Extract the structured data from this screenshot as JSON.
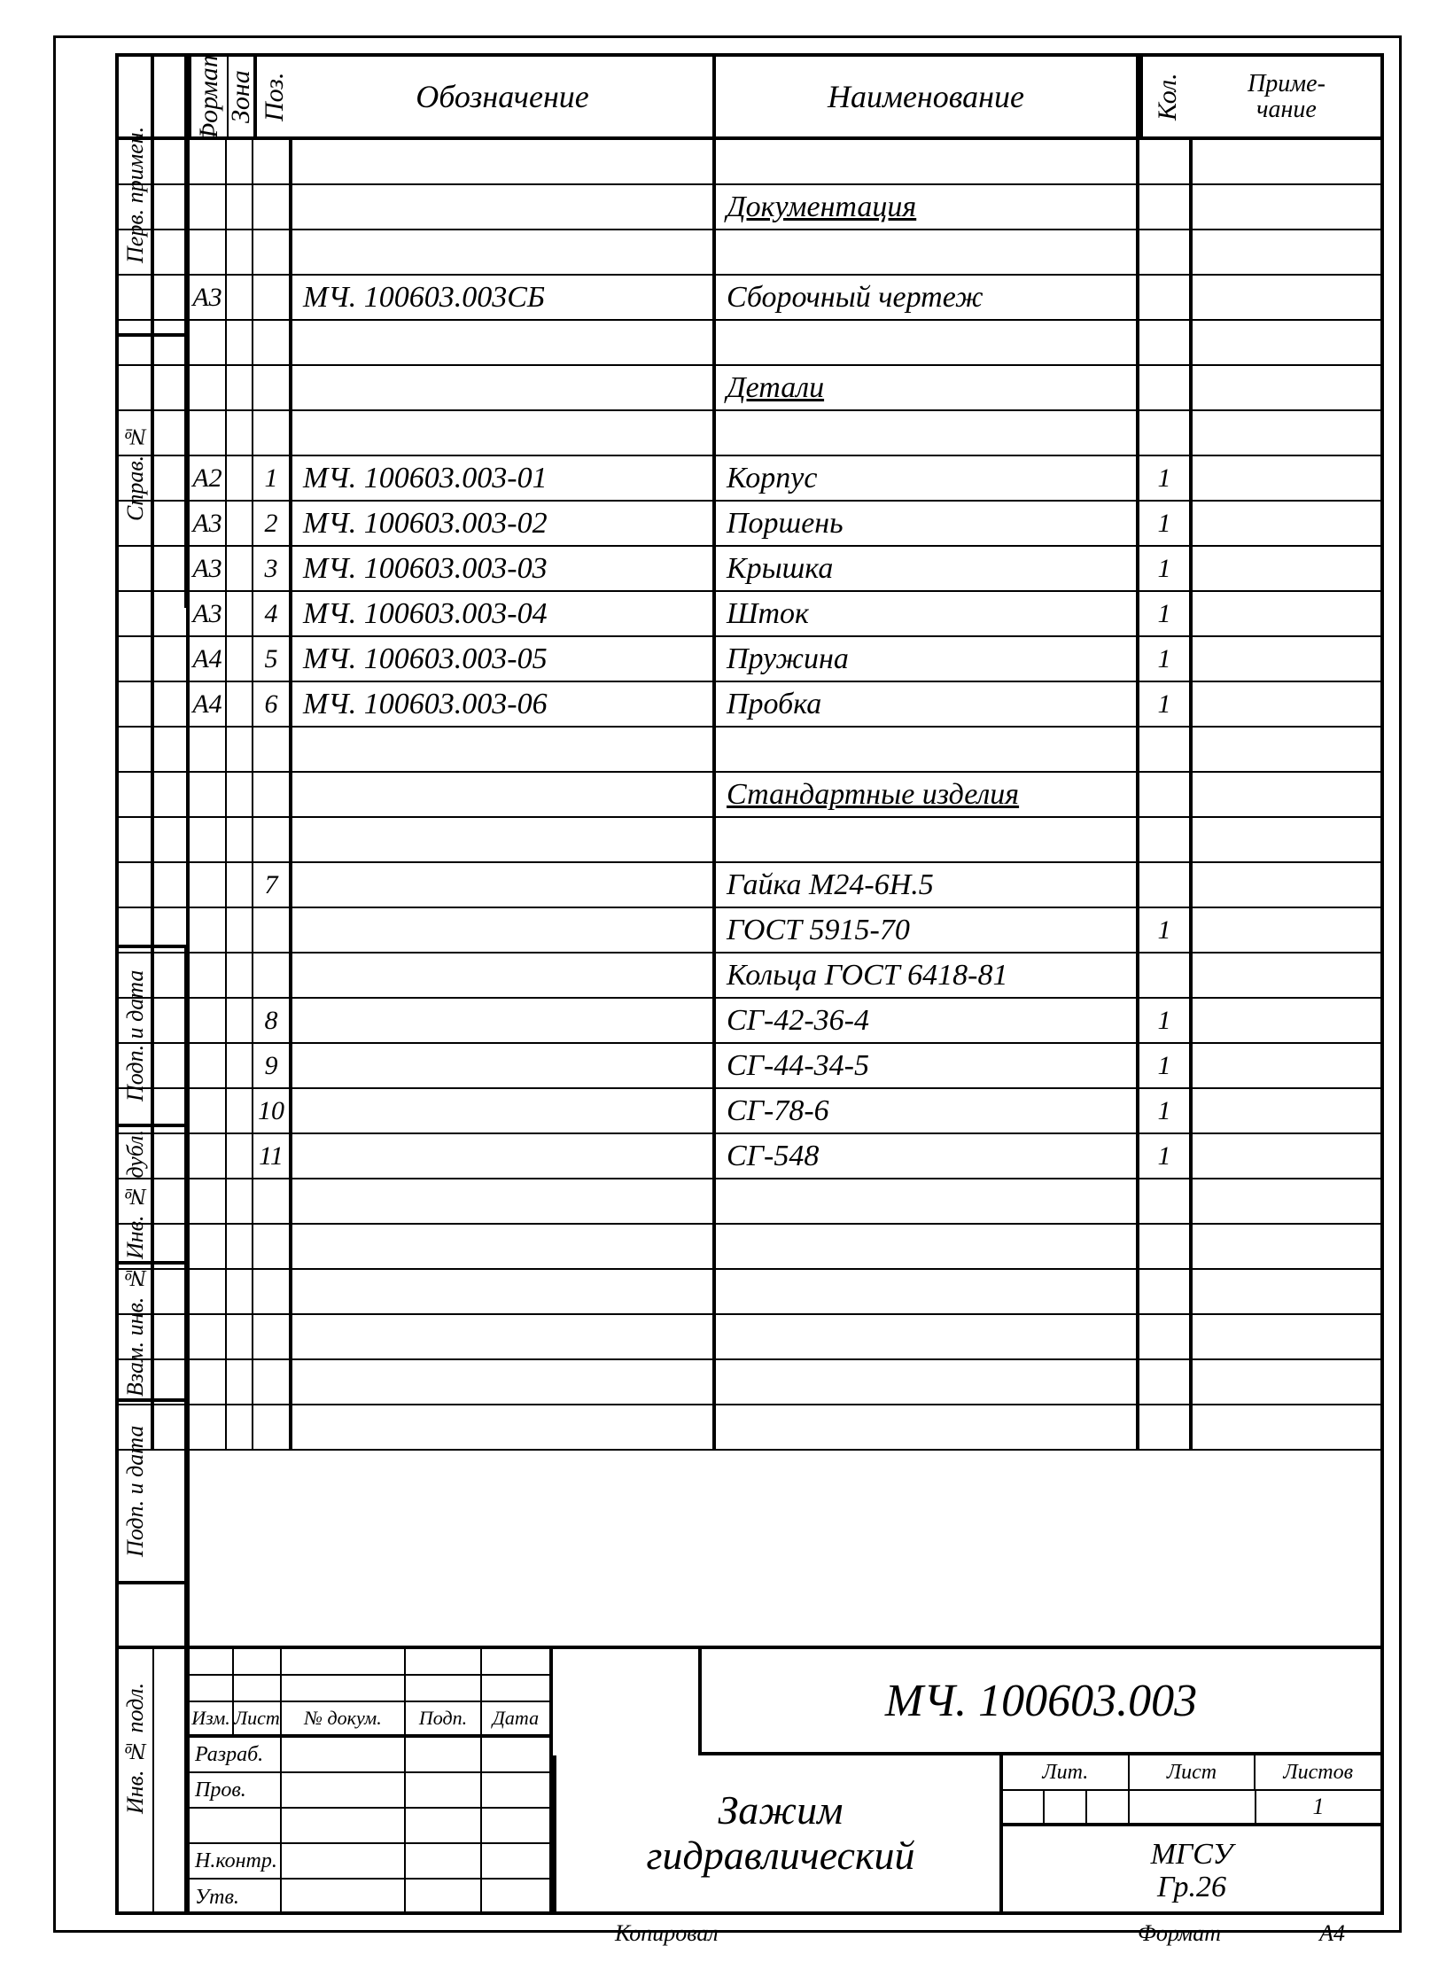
{
  "headers": {
    "format": "Формат",
    "zona": "Зона",
    "poz": "Поз.",
    "oboz": "Обозначение",
    "naim": "Наименование",
    "kol": "Кол.",
    "prim": "Приме-\nчание"
  },
  "side_labels": {
    "perv_primen": "Перв. примен.",
    "sprav_no": "Справ. №",
    "podp_data1": "Подп. и дата",
    "inv_dubl": "Инв. № дубл.",
    "vzam_inv": "Взам. инв. №",
    "podp_data2": "Подп. и дата",
    "inv_podl": "Инв. № подл."
  },
  "rows": [
    {
      "format": "",
      "zona": "",
      "poz": "",
      "oboz": "",
      "naim": "",
      "kol": "",
      "prim": ""
    },
    {
      "format": "",
      "zona": "",
      "poz": "",
      "oboz": "",
      "naim": "Документация",
      "kol": "",
      "prim": "",
      "u": true
    },
    {
      "format": "",
      "zona": "",
      "poz": "",
      "oboz": "",
      "naim": "",
      "kol": "",
      "prim": ""
    },
    {
      "format": "А3",
      "zona": "",
      "poz": "",
      "oboz": "МЧ. 100603.003СБ",
      "naim": "Сборочный чертеж",
      "kol": "",
      "prim": ""
    },
    {
      "format": "",
      "zona": "",
      "poz": "",
      "oboz": "",
      "naim": "",
      "kol": "",
      "prim": ""
    },
    {
      "format": "",
      "zona": "",
      "poz": "",
      "oboz": "",
      "naim": "Детали",
      "kol": "",
      "prim": "",
      "u": true
    },
    {
      "format": "",
      "zona": "",
      "poz": "",
      "oboz": "",
      "naim": "",
      "kol": "",
      "prim": ""
    },
    {
      "format": "А2",
      "zona": "",
      "poz": "1",
      "oboz": "МЧ. 100603.003-01",
      "naim": "Корпус",
      "kol": "1",
      "prim": ""
    },
    {
      "format": "А3",
      "zona": "",
      "poz": "2",
      "oboz": "МЧ. 100603.003-02",
      "naim": "Поршень",
      "kol": "1",
      "prim": ""
    },
    {
      "format": "А3",
      "zona": "",
      "poz": "3",
      "oboz": "МЧ. 100603.003-03",
      "naim": "Крышка",
      "kol": "1",
      "prim": ""
    },
    {
      "format": "А3",
      "zona": "",
      "poz": "4",
      "oboz": "МЧ. 100603.003-04",
      "naim": "Шток",
      "kol": "1",
      "prim": ""
    },
    {
      "format": "А4",
      "zona": "",
      "poz": "5",
      "oboz": "МЧ. 100603.003-05",
      "naim": "Пружина",
      "kol": "1",
      "prim": ""
    },
    {
      "format": "А4",
      "zona": "",
      "poz": "6",
      "oboz": "МЧ. 100603.003-06",
      "naim": "Пробка",
      "kol": "1",
      "prim": ""
    },
    {
      "format": "",
      "zona": "",
      "poz": "",
      "oboz": "",
      "naim": "",
      "kol": "",
      "prim": ""
    },
    {
      "format": "",
      "zona": "",
      "poz": "",
      "oboz": "",
      "naim": "Стандартные изделия",
      "kol": "",
      "prim": "",
      "u": true
    },
    {
      "format": "",
      "zona": "",
      "poz": "",
      "oboz": "",
      "naim": "",
      "kol": "",
      "prim": ""
    },
    {
      "format": "",
      "zona": "",
      "poz": "7",
      "oboz": "",
      "naim": "Гайка М24-6H.5",
      "kol": "",
      "prim": ""
    },
    {
      "format": "",
      "zona": "",
      "poz": "",
      "oboz": "",
      "naim": "ГОСТ 5915-70",
      "kol": "1",
      "prim": ""
    },
    {
      "format": "",
      "zona": "",
      "poz": "",
      "oboz": "",
      "naim": "Кольца ГОСТ 6418-81",
      "kol": "",
      "prim": ""
    },
    {
      "format": "",
      "zona": "",
      "poz": "8",
      "oboz": "",
      "naim": "СГ-42-36-4",
      "kol": "1",
      "prim": ""
    },
    {
      "format": "",
      "zona": "",
      "poz": "9",
      "oboz": "",
      "naim": "СГ-44-34-5",
      "kol": "1",
      "prim": ""
    },
    {
      "format": "",
      "zona": "",
      "poz": "10",
      "oboz": "",
      "naim": "СГ-78-6",
      "kol": "1",
      "prim": ""
    },
    {
      "format": "",
      "zona": "",
      "poz": "11",
      "oboz": "",
      "naim": "СГ-548",
      "kol": "1",
      "prim": ""
    },
    {
      "format": "",
      "zona": "",
      "poz": "",
      "oboz": "",
      "naim": "",
      "kol": "",
      "prim": ""
    },
    {
      "format": "",
      "zona": "",
      "poz": "",
      "oboz": "",
      "naim": "",
      "kol": "",
      "prim": ""
    },
    {
      "format": "",
      "zona": "",
      "poz": "",
      "oboz": "",
      "naim": "",
      "kol": "",
      "prim": ""
    },
    {
      "format": "",
      "zona": "",
      "poz": "",
      "oboz": "",
      "naim": "",
      "kol": "",
      "prim": ""
    },
    {
      "format": "",
      "zona": "",
      "poz": "",
      "oboz": "",
      "naim": "",
      "kol": "",
      "prim": ""
    },
    {
      "format": "",
      "zona": "",
      "poz": "",
      "oboz": "",
      "naim": "",
      "kol": "",
      "prim": ""
    }
  ],
  "title_block": {
    "doc_number": "МЧ. 100603.003",
    "doc_name": "Зажим\nгидравлический",
    "head_cols": {
      "izm": "Изм.",
      "list": "Лист",
      "ndok": "№ докум.",
      "podp": "Подп.",
      "data": "Дата"
    },
    "roles": {
      "razrab": "Разраб.",
      "prov": "Пров.",
      "nkontr": "Н.контр.",
      "utv": "Утв."
    },
    "rb": {
      "lit": "Лит.",
      "list": "Лист",
      "listov": "Листов",
      "listov_val": "1"
    },
    "org": "МГСУ\nГр.26"
  },
  "footer": {
    "kopiroval": "Копировал",
    "format_label": "Формат",
    "format_val": "А4"
  },
  "style": {
    "line_color": "#000000",
    "text_color": "#000000",
    "background": "#ffffff",
    "font_style": "italic",
    "header_fontsize": 36,
    "body_fontsize": 34,
    "title_fontsize": 52
  }
}
